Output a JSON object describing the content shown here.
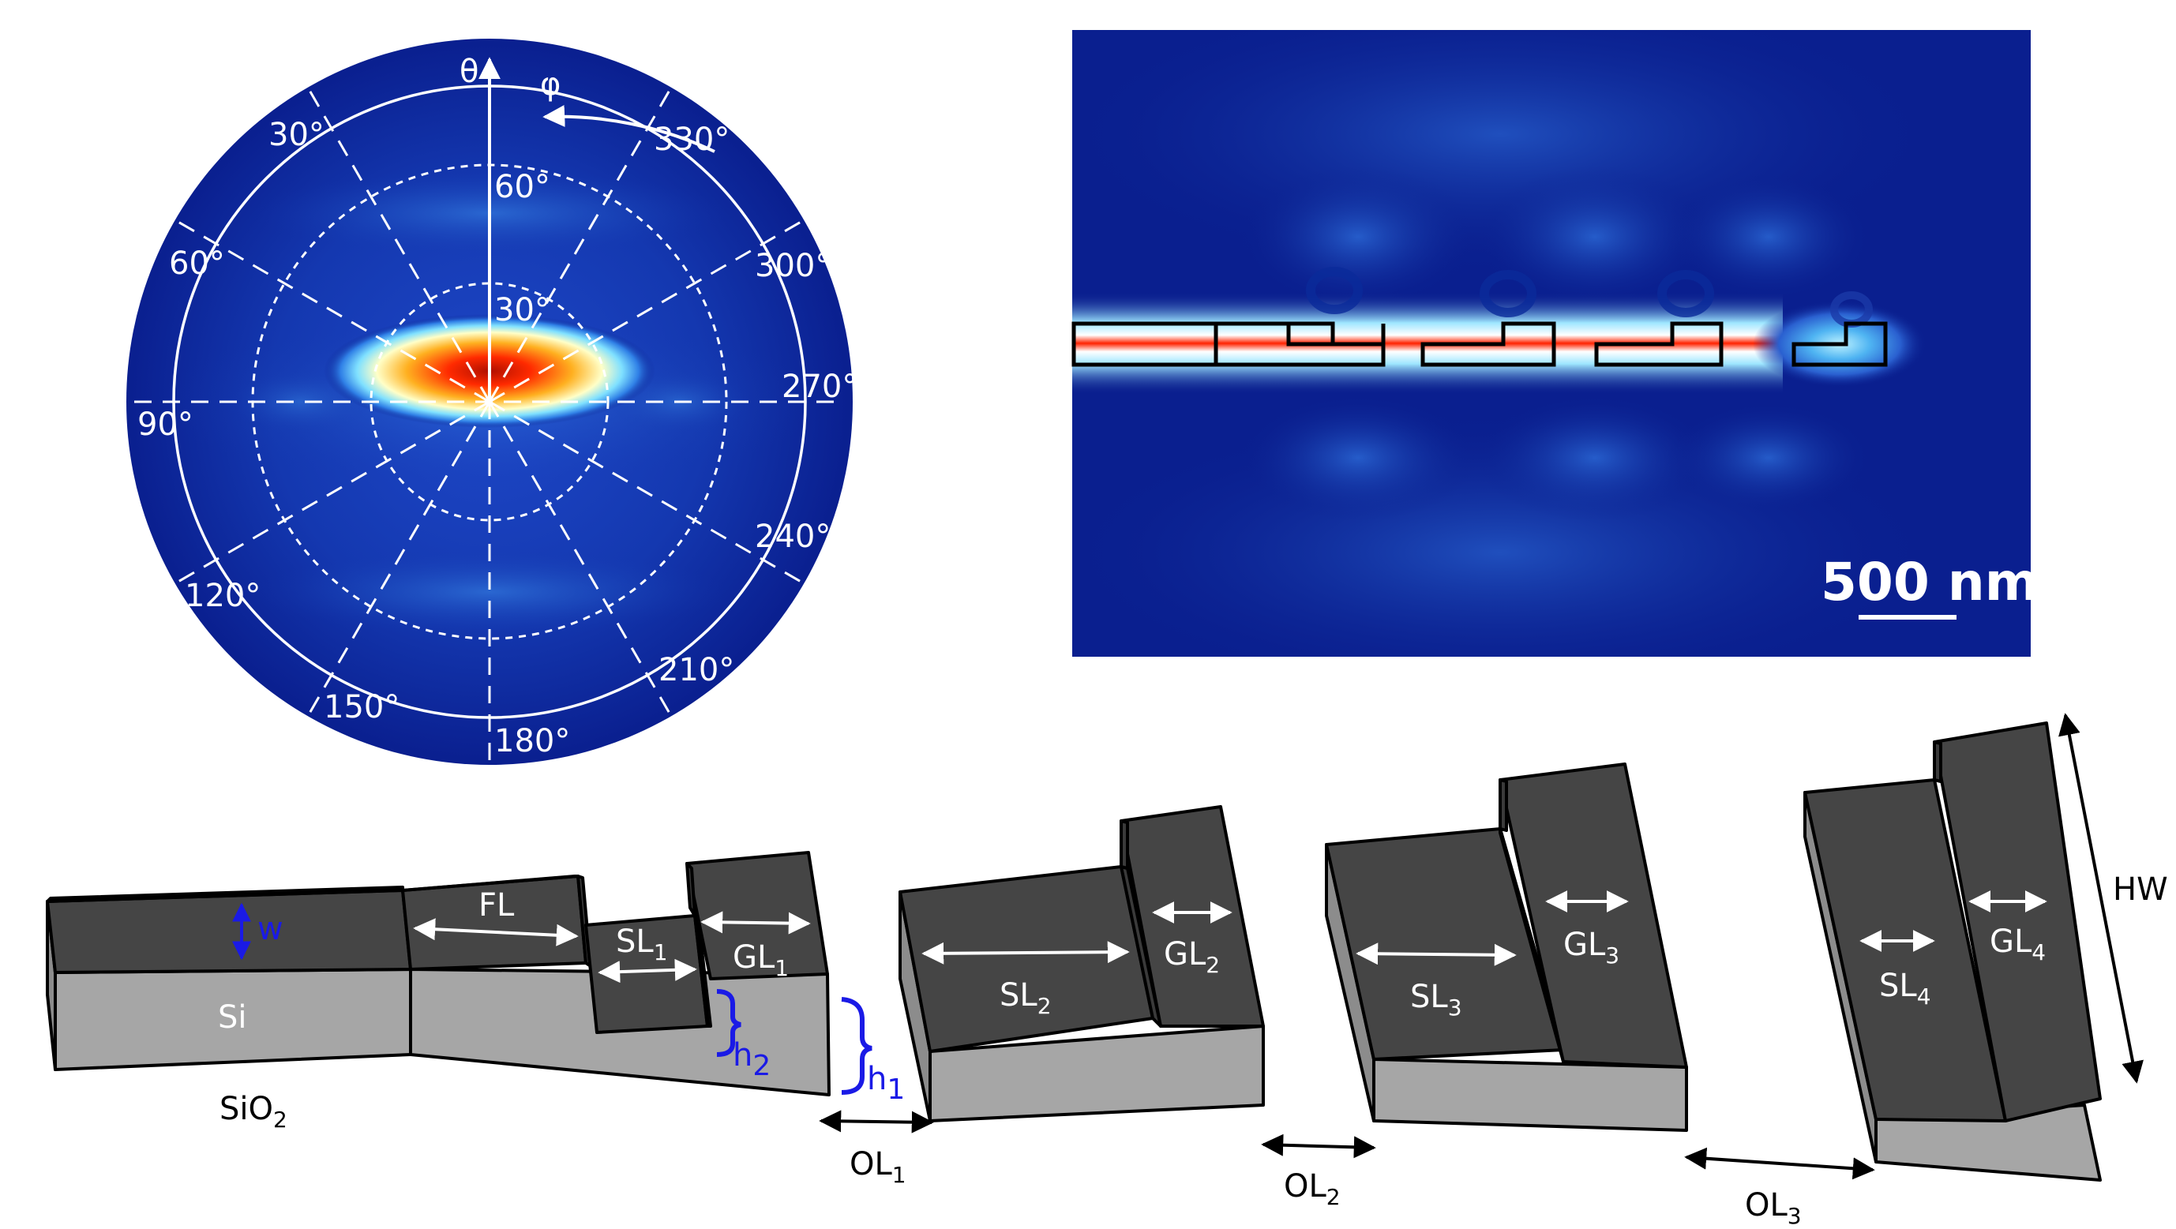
{
  "polar_plot": {
    "theta_symbol": "θ",
    "phi_symbol": "φ",
    "theta_ring_labels": [
      "30°",
      "60°"
    ],
    "phi_labels": [
      "30°",
      "60°",
      "90°",
      "120°",
      "150°",
      "180°",
      "210°",
      "240°",
      "270°",
      "300°",
      "330°"
    ]
  },
  "field_map": {
    "scale_bar_label": "500 nm"
  },
  "schematic": {
    "material_si": "Si",
    "material_sio2": {
      "base": "SiO",
      "sub": "2"
    },
    "dimension_w": "w",
    "dimension_h1": {
      "base": "h",
      "sub": "1"
    },
    "dimension_h2": {
      "base": "h",
      "sub": "2"
    },
    "first_section": "FL",
    "step_1": {
      "base": "SL",
      "sub": "1"
    },
    "step_2": {
      "base": "SL",
      "sub": "2"
    },
    "step_3": {
      "base": "SL",
      "sub": "3"
    },
    "step_4": {
      "base": "SL",
      "sub": "4"
    },
    "groove_1": {
      "base": "GL",
      "sub": "1"
    },
    "groove_2": {
      "base": "GL",
      "sub": "2"
    },
    "groove_3": {
      "base": "GL",
      "sub": "3"
    },
    "groove_4": {
      "base": "GL",
      "sub": "4"
    },
    "offset_1": {
      "base": "OL",
      "sub": "1"
    },
    "offset_2": {
      "base": "OL",
      "sub": "2"
    },
    "offset_3": {
      "base": "OL",
      "sub": "3"
    },
    "height_width": "HW"
  },
  "colors": {
    "field_background": "#0a1f8f",
    "hot_field": "#ff1a00",
    "waveguide_dark": "#454545",
    "substrate_grey": "#a6a6a6",
    "annotation_blue": "#1a1ae6"
  }
}
